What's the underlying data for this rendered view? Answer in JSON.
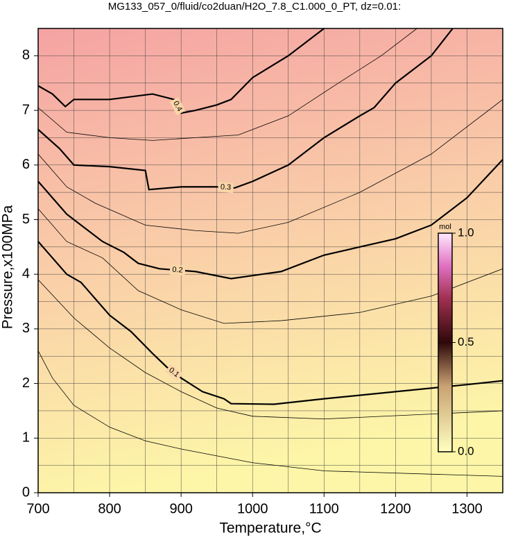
{
  "chart_data": {
    "type": "contour",
    "title": "MG133_057_0/fluid/co2duan/H2O_7.8_C1.000_0_PT, dz=0.01:",
    "x_label": "Temperature,°C",
    "y_label": "Pressure,x100MPa",
    "xlim": [
      700,
      1350
    ],
    "ylim": [
      0,
      8.5
    ],
    "xticks": [
      700,
      800,
      900,
      1000,
      1100,
      1200,
      1300
    ],
    "yticks": [
      0,
      1,
      2,
      3,
      4,
      5,
      6,
      7,
      8
    ],
    "xminorticks": [
      750,
      850,
      950,
      1050,
      1150,
      1250
    ],
    "yminorticks": [
      0.5,
      1.5,
      2.5,
      3.5,
      4.5,
      5.5,
      6.5,
      7.5
    ],
    "grid": true,
    "contours": [
      {
        "level": 0.1,
        "x": [
          700,
          720,
          740,
          760,
          780,
          800,
          830,
          860,
          880,
          900,
          930,
          960,
          970,
          1030,
          1100,
          1200,
          1300,
          1350
        ],
        "y": [
          4.6,
          4.3,
          4.0,
          3.85,
          3.55,
          3.25,
          2.95,
          2.55,
          2.3,
          2.1,
          1.85,
          1.72,
          1.63,
          1.62,
          1.72,
          1.85,
          1.98,
          2.05
        ]
      },
      {
        "level": 0.2,
        "x": [
          700,
          720,
          740,
          760,
          790,
          820,
          840,
          870,
          920,
          970,
          1040,
          1100,
          1150,
          1200,
          1250,
          1300,
          1350
        ],
        "y": [
          5.7,
          5.4,
          5.1,
          4.9,
          4.6,
          4.4,
          4.2,
          4.1,
          4.05,
          3.92,
          4.05,
          4.35,
          4.5,
          4.65,
          4.9,
          5.4,
          6.1
        ]
      },
      {
        "level": 0.3,
        "x": [
          700,
          730,
          750,
          800,
          850,
          855,
          900,
          950,
          975,
          1000,
          1050,
          1100,
          1150,
          1170,
          1200,
          1250,
          1280
        ],
        "y": [
          6.65,
          6.3,
          6.0,
          5.97,
          5.9,
          5.55,
          5.6,
          5.6,
          5.58,
          5.7,
          6.0,
          6.5,
          6.9,
          7.05,
          7.5,
          8.0,
          8.5
        ]
      },
      {
        "level": 0.4,
        "x": [
          700,
          720,
          738,
          750,
          800,
          860,
          890,
          900,
          920,
          950,
          970,
          1000,
          1050,
          1100
        ],
        "y": [
          7.45,
          7.3,
          7.07,
          7.2,
          7.2,
          7.3,
          7.2,
          6.95,
          7.0,
          7.1,
          7.2,
          7.6,
          8.0,
          8.5
        ]
      }
    ],
    "thin_contours": [
      {
        "x": [
          700,
          720,
          750,
          800,
          850,
          900,
          1000,
          1100,
          1350
        ],
        "y": [
          2.6,
          2.1,
          1.6,
          1.2,
          0.95,
          0.8,
          0.55,
          0.4,
          0.3
        ]
      },
      {
        "x": [
          700,
          750,
          800,
          850,
          900,
          950,
          1000,
          1100,
          1350
        ],
        "y": [
          3.9,
          3.2,
          2.65,
          2.2,
          1.85,
          1.55,
          1.4,
          1.35,
          1.5
        ]
      },
      {
        "x": [
          700,
          740,
          790,
          840,
          900,
          960,
          1040,
          1150,
          1250,
          1350
        ],
        "y": [
          5.2,
          4.6,
          4.3,
          3.7,
          3.35,
          3.1,
          3.15,
          3.3,
          3.6,
          4.1
        ]
      },
      {
        "x": [
          700,
          740,
          780,
          850,
          920,
          980,
          1050,
          1150,
          1250,
          1350
        ],
        "y": [
          6.2,
          5.6,
          5.3,
          4.9,
          4.8,
          4.75,
          4.95,
          5.5,
          6.2,
          7.2
        ]
      },
      {
        "x": [
          700,
          740,
          800,
          860,
          920,
          980,
          1050,
          1120,
          1180,
          1230
        ],
        "y": [
          7.05,
          6.6,
          6.5,
          6.45,
          6.5,
          6.55,
          6.9,
          7.5,
          8.0,
          8.5
        ]
      }
    ],
    "colorbar": {
      "unit": "mol",
      "clim": [
        0,
        1
      ],
      "ticks": [
        {
          "value": 0,
          "label": "0.0"
        },
        {
          "value": 0.5,
          "label": "0.5"
        },
        {
          "value": 1,
          "label": "1.0"
        }
      ]
    }
  }
}
